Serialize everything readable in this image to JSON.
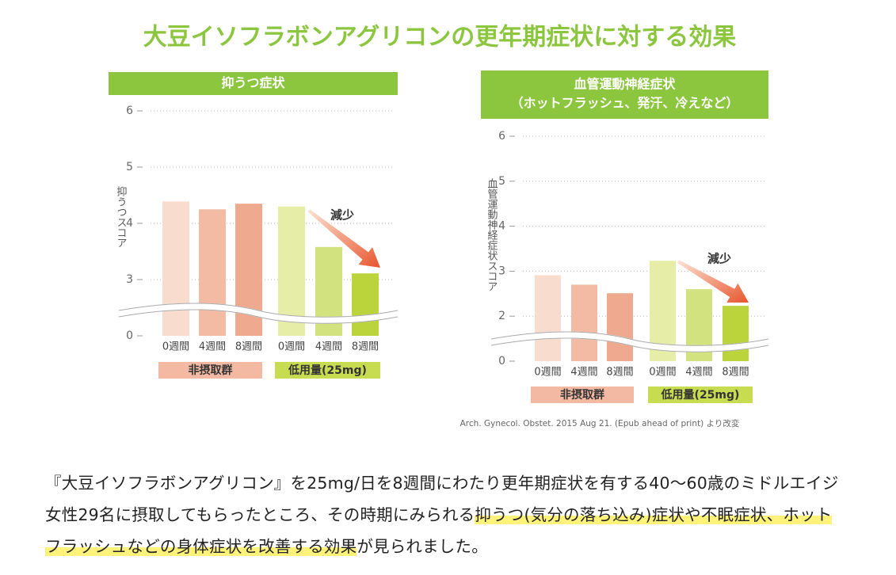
{
  "title": "大豆イソフラボンアグリコンの更年期症状に対する効果",
  "chart_data": [
    {
      "type": "bar",
      "title": "抑うつ症状",
      "ylabel": "抑うつスコア",
      "categories": [
        "0週間",
        "4週間",
        "8週間"
      ],
      "series": [
        {
          "name": "非摂取群",
          "color": "#f3b9a3",
          "colors": [
            "#f8ddcf",
            "#f3bba3",
            "#efa98e"
          ],
          "values": [
            4.39,
            4.25,
            4.35
          ]
        },
        {
          "name": "低用量(25mg)",
          "color": "#c8dc52",
          "colors": [
            "#e6eda6",
            "#d2e27e",
            "#bcd43c"
          ],
          "values": [
            4.3,
            3.58,
            3.11
          ]
        }
      ],
      "ylim": [
        0,
        6
      ],
      "yticks": [
        0,
        3,
        4,
        5,
        6
      ],
      "axis_break": [
        0,
        2
      ],
      "grid": true,
      "annotation": "減少"
    },
    {
      "type": "bar",
      "title": "血管運動神経症状",
      "subtitle": "（ホットフラッシュ、発汗、冷えなど）",
      "ylabel": "血管運動神経症状スコア",
      "categories": [
        "0週間",
        "4週間",
        "8週間"
      ],
      "series": [
        {
          "name": "非摂取群",
          "color": "#f3b9a3",
          "colors": [
            "#f8ddcf",
            "#f3bba3",
            "#efa98e"
          ],
          "values": [
            2.91,
            2.7,
            2.51
          ]
        },
        {
          "name": "低用量(25mg)",
          "color": "#c8dc52",
          "colors": [
            "#e6eda6",
            "#d2e27e",
            "#bcd43c"
          ],
          "values": [
            3.23,
            2.6,
            2.23
          ]
        }
      ],
      "ylim": [
        0,
        6
      ],
      "yticks": [
        0,
        2,
        3,
        4,
        5,
        6
      ],
      "axis_break": [
        0,
        1
      ],
      "grid": true,
      "annotation": "減少"
    }
  ],
  "source": "Arch. Gynecol. Obstet. 2015 Aug 21. (Epub ahead of print) より改変",
  "paragraph": [
    "『大豆イソフラボンアグリコン』を25mg/日を8週間にわたり更年期症状を有する40～60歳のミドルエイジ女性29名に摂取してもらったところ、その時期にみられる",
    "抑うつ(気分の落ち込み)症状や不眠症状、ホットフラッシュなどの身体症状を改善する効果",
    "が見られました。"
  ]
}
